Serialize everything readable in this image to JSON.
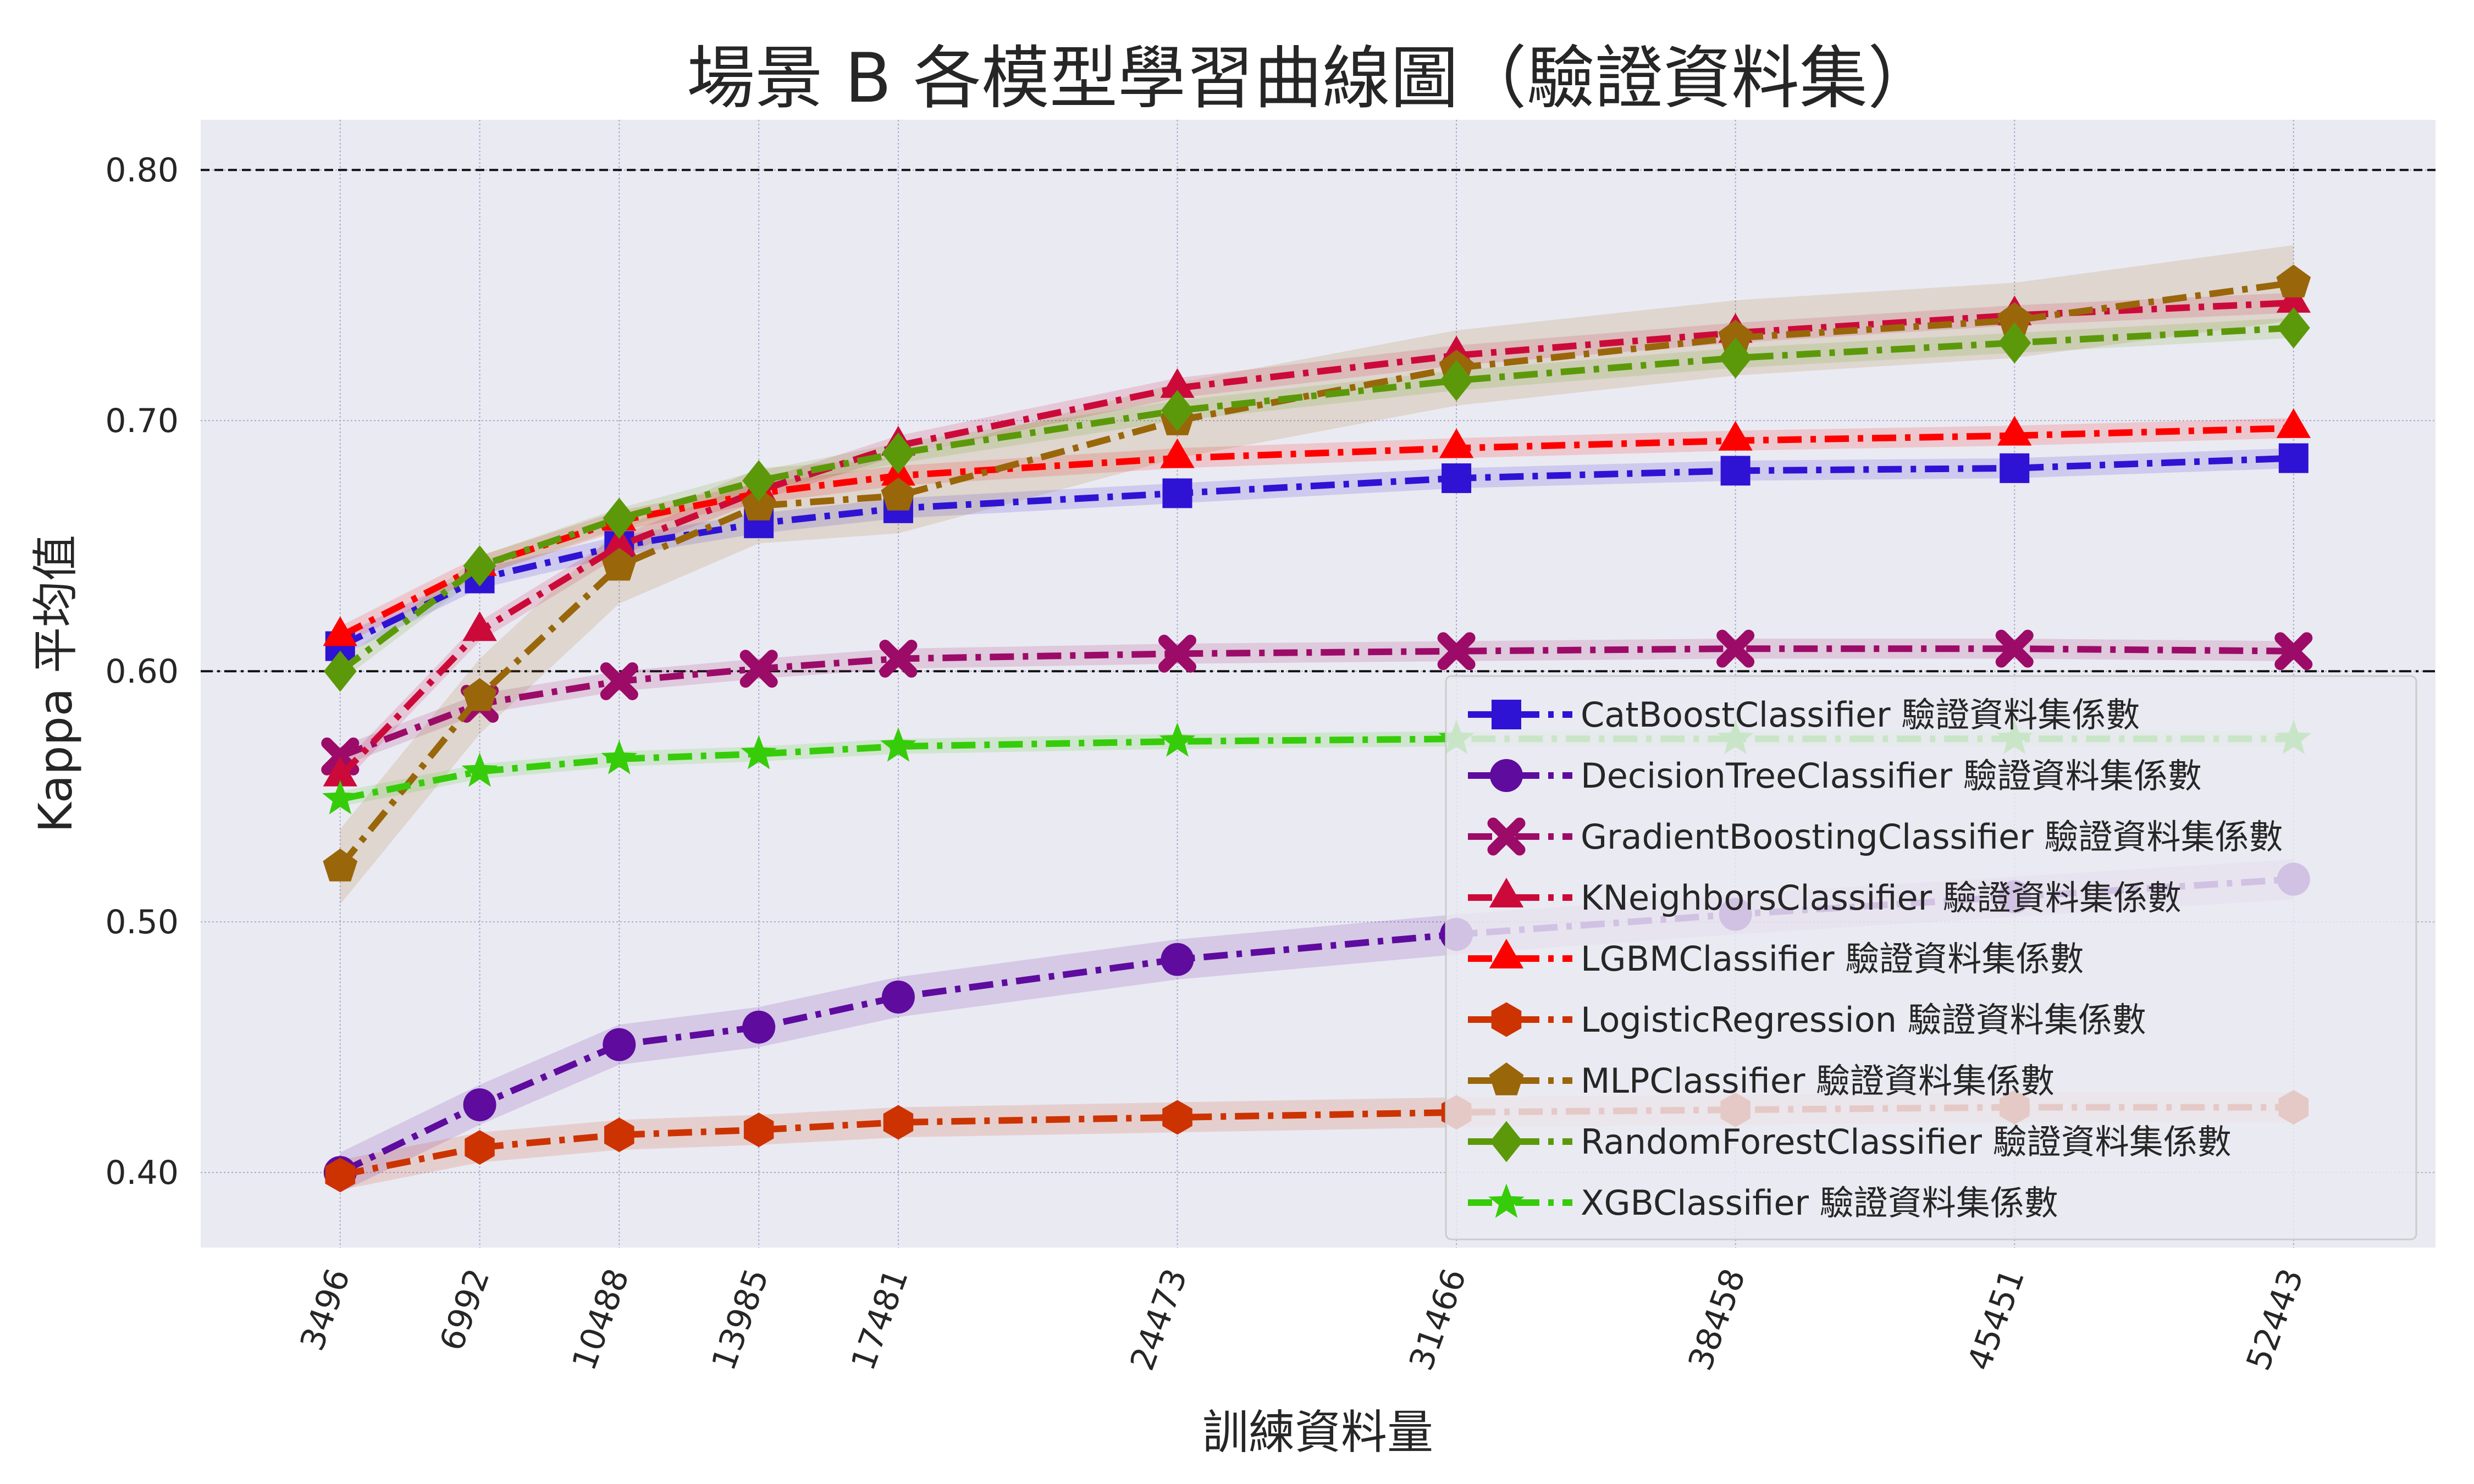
{
  "chart_data": {
    "type": "line",
    "title": "場景 B 各模型學習曲線圖（驗證資料集）",
    "xlabel": "訓練資料量",
    "ylabel": "Kappa 平均值",
    "x": [
      3496,
      6992,
      10488,
      13985,
      17481,
      24473,
      31466,
      38458,
      45451,
      52443
    ],
    "x_tick_labels": [
      "3496",
      "6992",
      "10488",
      "13985",
      "17481",
      "24473",
      "31466",
      "38458",
      "45451",
      "52443"
    ],
    "xlim": [
      0,
      56000
    ],
    "ylim": [
      0.37,
      0.82
    ],
    "y_ticks": [
      0.4,
      0.5,
      0.6,
      0.7,
      0.8
    ],
    "y_tick_labels": [
      "0.40",
      "0.50",
      "0.60",
      "0.70",
      "0.80"
    ],
    "reference_lines": [
      0.8,
      0.6
    ],
    "grid": true,
    "legend_position": "lower-right",
    "series": [
      {
        "name": "CatBoostClassifier 驗證資料集係數",
        "marker": "square",
        "color": "#2e13d4",
        "values": [
          0.61,
          0.637,
          0.65,
          0.659,
          0.665,
          0.671,
          0.677,
          0.68,
          0.681,
          0.685
        ],
        "band": 0.004
      },
      {
        "name": "DecisionTreeClassifier 驗證資料集係數",
        "marker": "circle",
        "color": "#5e0b9e",
        "values": [
          0.4,
          0.427,
          0.451,
          0.458,
          0.47,
          0.485,
          0.495,
          0.503,
          0.51,
          0.517
        ],
        "band": 0.008
      },
      {
        "name": "GradientBoostingClassifier 驗證資料集係數",
        "marker": "x",
        "color": "#9c0b68",
        "values": [
          0.566,
          0.587,
          0.596,
          0.601,
          0.605,
          0.607,
          0.608,
          0.609,
          0.609,
          0.608
        ],
        "band": 0.004
      },
      {
        "name": "KNeighborsClassifier 驗證資料集係數",
        "marker": "triangle-down",
        "color": "#cc0a3a",
        "values": [
          0.558,
          0.616,
          0.65,
          0.672,
          0.69,
          0.713,
          0.726,
          0.735,
          0.742,
          0.747
        ],
        "band": 0.004
      },
      {
        "name": "LGBMClassifier 驗證資料集係數",
        "marker": "triangle-up",
        "color": "#ff0000",
        "values": [
          0.614,
          0.642,
          0.66,
          0.671,
          0.678,
          0.685,
          0.689,
          0.692,
          0.694,
          0.697
        ],
        "band": 0.004
      },
      {
        "name": "LogisticRegression 驗證資料集係數",
        "marker": "hexagon",
        "color": "#cc3300",
        "values": [
          0.399,
          0.41,
          0.415,
          0.417,
          0.42,
          0.422,
          0.424,
          0.425,
          0.426,
          0.426
        ],
        "band": 0.006
      },
      {
        "name": "MLPClassifier 驗證資料集係數",
        "marker": "pentagon",
        "color": "#99660a",
        "values": [
          0.522,
          0.59,
          0.642,
          0.666,
          0.67,
          0.7,
          0.721,
          0.733,
          0.74,
          0.755
        ],
        "band": 0.015
      },
      {
        "name": "RandomForestClassifier 驗證資料集係數",
        "marker": "diamond",
        "color": "#5c990a",
        "values": [
          0.6,
          0.642,
          0.661,
          0.676,
          0.687,
          0.704,
          0.716,
          0.725,
          0.731,
          0.737
        ],
        "band": 0.004
      },
      {
        "name": "XGBClassifier 驗證資料集係數",
        "marker": "star",
        "color": "#36cc0a",
        "values": [
          0.549,
          0.56,
          0.565,
          0.567,
          0.57,
          0.572,
          0.573,
          0.573,
          0.573,
          0.573
        ],
        "band": 0.003
      }
    ]
  }
}
